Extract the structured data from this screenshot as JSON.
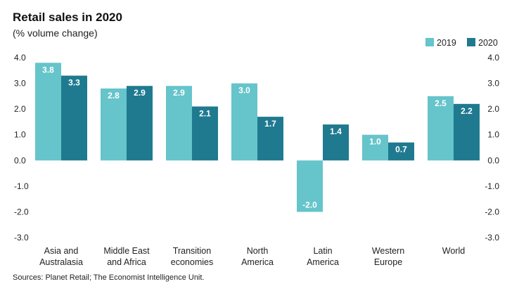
{
  "chart_data": {
    "type": "bar",
    "title": "Retail sales in 2020",
    "subtitle": "(% volume change)",
    "categories": [
      [
        "Asia and",
        "Australasia"
      ],
      [
        "Middle East",
        "and Africa"
      ],
      [
        "Transition",
        "economies"
      ],
      [
        "North",
        "America"
      ],
      [
        "Latin",
        "America"
      ],
      [
        "Western",
        "Europe"
      ],
      [
        "World"
      ]
    ],
    "series": [
      {
        "name": "2019",
        "color": "#66c4cb",
        "values": [
          3.8,
          2.8,
          2.9,
          3.0,
          -2.0,
          1.0,
          2.5
        ],
        "labels": [
          "3.8",
          "2.8",
          "2.9",
          "3.0",
          "-2.0",
          "1.0",
          "2.5"
        ]
      },
      {
        "name": "2020",
        "color": "#1f7a90",
        "values": [
          3.3,
          2.9,
          2.1,
          1.7,
          1.4,
          0.7,
          2.2
        ],
        "labels": [
          "3.3",
          "2.9",
          "2.1",
          "1.7",
          "1.4",
          "0.7",
          "2.2"
        ]
      }
    ],
    "ylim": [
      -3.0,
      4.0
    ],
    "yticks": [
      "4.0",
      "3.0",
      "2.0",
      "1.0",
      "0.0",
      "-1.0",
      "-2.0",
      "-3.0"
    ],
    "ytick_values": [
      4,
      3,
      2,
      1,
      0,
      -1,
      -2,
      -3
    ],
    "legend_position": "top-right",
    "grid": false,
    "source": "Sources: Planet Retail; The Economist Intelligence Unit."
  }
}
